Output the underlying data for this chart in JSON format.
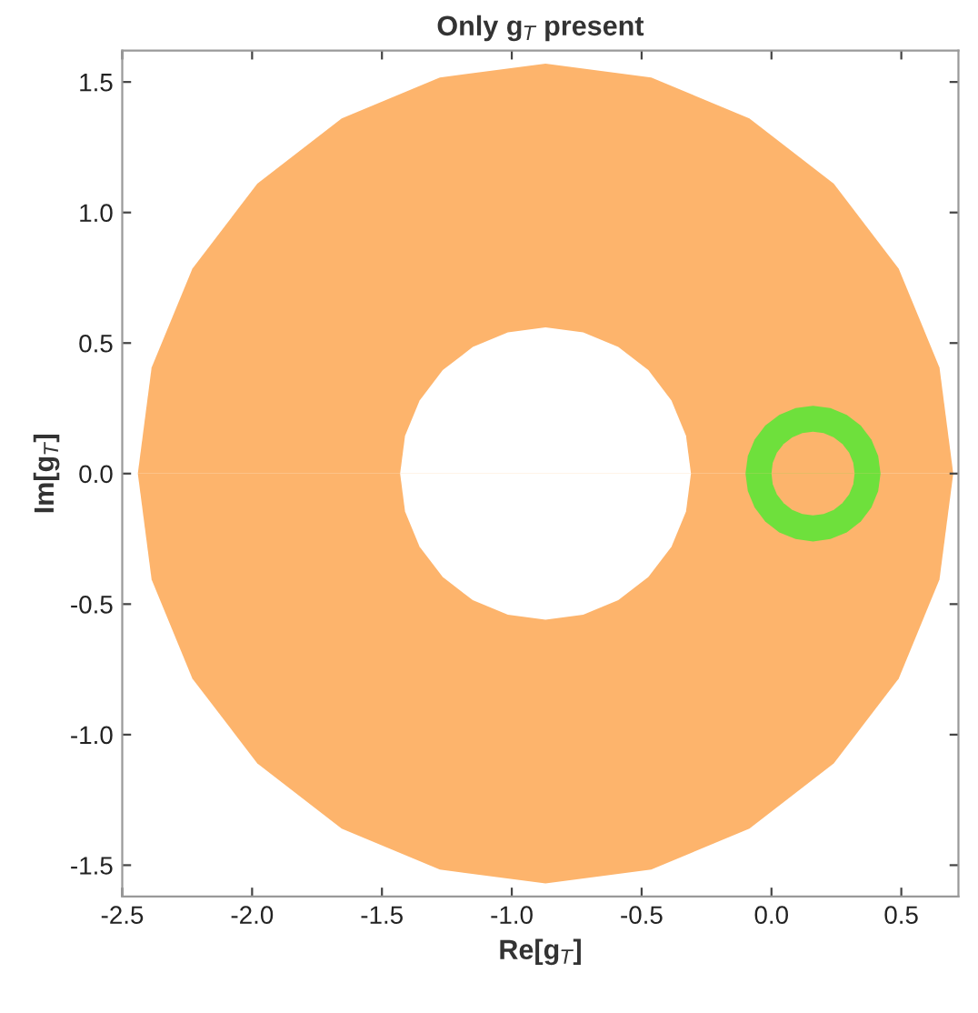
{
  "chart_data": {
    "type": "area",
    "title": "Only g$_{T}$ present",
    "xlabel": "Re[g$_{T}$]",
    "ylabel": "Im[g$_{T}$]",
    "xlim": [
      -2.5,
      0.72
    ],
    "ylim": [
      -1.62,
      1.62
    ],
    "xticks": [
      -2.5,
      {
        "value": -2.0,
        "label": "-2.0"
      },
      -1.5,
      {
        "value": -1.0,
        "label": "-1.0"
      },
      -0.5,
      {
        "value": 0.0,
        "label": "0.0"
      },
      0.5
    ],
    "yticks": [
      -1.5,
      {
        "value": -1.0,
        "label": "-1.0"
      },
      -0.5,
      {
        "value": 0.0,
        "label": "0.0"
      },
      0.5,
      {
        "value": 1.0,
        "label": "1.0"
      },
      1.5
    ],
    "grid": false,
    "legend": false,
    "series": [
      {
        "color": "#fdb46c",
        "x": [
          -2.44,
          -2.387,
          -2.23,
          -1.98,
          -1.655,
          -1.277,
          -0.87,
          -0.463,
          -0.085,
          0.24,
          0.49,
          0.647,
          0.7
        ],
        "values": [
          0,
          0.406,
          0.785,
          1.11,
          1.36,
          1.517,
          1.57,
          1.517,
          1.36,
          1.11,
          0.785,
          0.406,
          0
        ]
      },
      {
        "color": "#fdb46c",
        "x": [
          -2.44,
          -2.387,
          -2.23,
          -1.98,
          -1.655,
          -1.277,
          -0.87,
          -0.463,
          -0.085,
          0.24,
          0.49,
          0.647,
          0.7
        ],
        "values": [
          0,
          -0.406,
          -0.785,
          -1.11,
          -1.36,
          -1.517,
          -1.57,
          -1.517,
          -1.36,
          -1.11,
          -0.785,
          -0.406,
          0
        ]
      },
      {
        "color": "#ffffff",
        "x": [
          -1.43,
          -1.411,
          -1.355,
          -1.266,
          -1.15,
          -1.015,
          -0.87,
          -0.725,
          -0.59,
          -0.474,
          -0.385,
          -0.329,
          -0.31
        ],
        "values": [
          0,
          0.145,
          0.28,
          0.396,
          0.485,
          0.541,
          0.56,
          0.541,
          0.485,
          0.396,
          0.28,
          0.145,
          0
        ]
      },
      {
        "color": "#ffffff",
        "x": [
          -1.43,
          -1.411,
          -1.355,
          -1.266,
          -1.15,
          -1.015,
          -0.87,
          -0.725,
          -0.59,
          -0.474,
          -0.385,
          -0.329,
          -0.31
        ],
        "values": [
          0,
          -0.145,
          -0.28,
          -0.396,
          -0.485,
          -0.541,
          -0.56,
          -0.541,
          -0.485,
          -0.396,
          -0.28,
          -0.145,
          0
        ]
      },
      {
        "color": "#6ee03c",
        "x": [
          -0.1,
          -0.091,
          -0.065,
          -0.024,
          0.03,
          0.093,
          0.16,
          0.227,
          0.29,
          0.344,
          0.385,
          0.411,
          0.42
        ],
        "values": [
          0,
          0.067,
          0.13,
          0.184,
          0.225,
          0.251,
          0.26,
          0.251,
          0.225,
          0.184,
          0.13,
          0.067,
          0
        ]
      },
      {
        "color": "#6ee03c",
        "x": [
          -0.1,
          -0.091,
          -0.065,
          -0.024,
          0.03,
          0.093,
          0.16,
          0.227,
          0.29,
          0.344,
          0.385,
          0.411,
          0.42
        ],
        "values": [
          0,
          -0.067,
          -0.13,
          -0.184,
          -0.225,
          -0.251,
          -0.26,
          -0.251,
          -0.225,
          -0.184,
          -0.13,
          -0.067,
          0
        ]
      },
      {
        "color": "#fcb46c",
        "x": [
          0.0,
          0.005,
          0.021,
          0.047,
          0.08,
          0.119,
          0.16,
          0.201,
          0.24,
          0.273,
          0.299,
          0.315,
          0.32
        ],
        "values": [
          0,
          0.041,
          0.08,
          0.113,
          0.139,
          0.155,
          0.16,
          0.155,
          0.139,
          0.113,
          0.08,
          0.041,
          0
        ]
      },
      {
        "color": "#fcb46c",
        "x": [
          0.0,
          0.005,
          0.021,
          0.047,
          0.08,
          0.119,
          0.16,
          0.201,
          0.24,
          0.273,
          0.299,
          0.315,
          0.32
        ],
        "values": [
          0,
          -0.041,
          -0.08,
          -0.113,
          -0.139,
          -0.155,
          -0.16,
          -0.155,
          -0.139,
          -0.113,
          -0.08,
          -0.041,
          0
        ]
      }
    ]
  }
}
